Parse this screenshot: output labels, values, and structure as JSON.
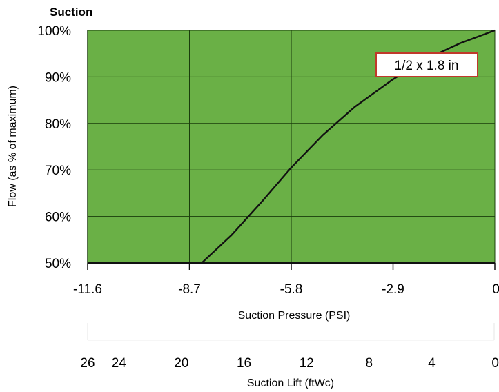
{
  "chart_data": {
    "type": "line",
    "title": "Suction",
    "ylabel": "Flow (as % of maximum)",
    "xlabel": "Suction Pressure (PSI)",
    "x2label": "Suction Lift (ftWc)",
    "ylim": [
      50,
      100
    ],
    "xlim": [
      -11.6,
      0
    ],
    "yticks": [
      "50%",
      "60%",
      "70%",
      "80%",
      "90%",
      "100%"
    ],
    "xticks": [
      "-11.6",
      "-8.7",
      "-5.8",
      "-2.9",
      "0"
    ],
    "x2ticks": [
      "26",
      "24",
      "20",
      "16",
      "12",
      "8",
      "4",
      "0"
    ],
    "series": [
      {
        "name": "1/2 x 1.8 in",
        "x": [
          -8.35,
          -7.5,
          -6.6,
          -5.8,
          -4.9,
          -4.0,
          -2.9,
          -2.0,
          -1.0,
          0
        ],
        "y": [
          50,
          56,
          63.5,
          70.5,
          77.5,
          83.5,
          89.5,
          93.7,
          97.2,
          100
        ]
      }
    ],
    "grid": true,
    "plot_background": "#6ab046",
    "line_color": "#111111",
    "callout_border": "#c0392b"
  }
}
